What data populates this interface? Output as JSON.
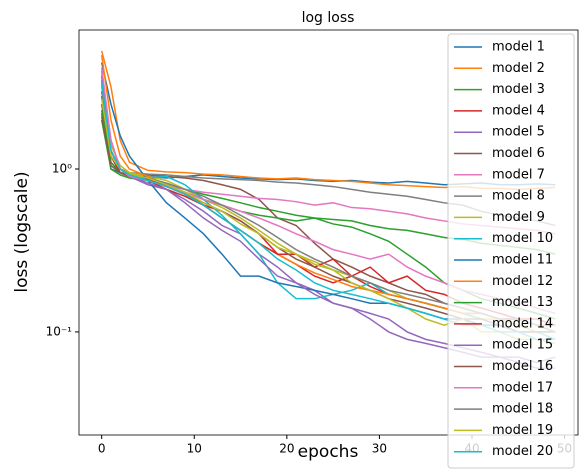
{
  "chart_data": {
    "type": "line",
    "title": "log loss",
    "x_label": "epochs",
    "y_label": "loss (logscale)",
    "log_y": true,
    "legend": "upper right",
    "x": [
      0,
      1,
      2,
      3,
      5,
      7,
      9,
      11,
      13,
      15,
      17,
      19,
      21,
      23,
      25,
      27,
      29,
      31,
      33,
      35,
      37,
      39,
      41,
      43,
      45,
      47,
      49
    ],
    "xlim": [
      -2.45,
      51.45
    ],
    "xticks": [
      0,
      10,
      20,
      30,
      40,
      50
    ],
    "ylim": [
      0.0233,
      7.13
    ],
    "yticks": [
      {
        "value": 0.1,
        "label": "10⁻¹"
      },
      {
        "value": 1,
        "label": "10⁰"
      }
    ],
    "series": [
      {
        "name": "model 1",
        "color": "#1f77b4",
        "values": [
          2.2,
          1.0,
          0.95,
          0.92,
          0.9,
          0.88,
          0.9,
          0.92,
          0.9,
          0.88,
          0.87,
          0.86,
          0.87,
          0.85,
          0.84,
          0.85,
          0.83,
          0.82,
          0.84,
          0.82,
          0.8,
          0.81,
          0.82,
          0.8,
          0.8,
          0.81,
          0.8
        ]
      },
      {
        "name": "model 2",
        "color": "#ff7f0e",
        "values": [
          5.3,
          3.2,
          1.5,
          1.1,
          0.98,
          0.96,
          0.95,
          0.93,
          0.92,
          0.9,
          0.88,
          0.87,
          0.88,
          0.86,
          0.85,
          0.84,
          0.82,
          0.8,
          0.79,
          0.78,
          0.77,
          0.78,
          0.76,
          0.76,
          0.75,
          0.76,
          0.77
        ]
      },
      {
        "name": "model 3",
        "color": "#2ca02c",
        "values": [
          2.0,
          1.0,
          0.92,
          0.88,
          0.85,
          0.8,
          0.75,
          0.7,
          0.66,
          0.62,
          0.58,
          0.55,
          0.52,
          0.5,
          0.49,
          0.48,
          0.45,
          0.43,
          0.42,
          0.4,
          0.38,
          0.37,
          0.35,
          0.34,
          0.33,
          0.32,
          0.3
        ]
      },
      {
        "name": "model 4",
        "color": "#d62728",
        "values": [
          3.0,
          1.2,
          0.95,
          0.9,
          0.85,
          0.78,
          0.7,
          0.6,
          0.55,
          0.48,
          0.4,
          0.3,
          0.26,
          0.22,
          0.2,
          0.22,
          0.19,
          0.17,
          0.16,
          0.15,
          0.14,
          0.13,
          0.13,
          0.12,
          0.12,
          0.11,
          0.11
        ]
      },
      {
        "name": "model 5",
        "color": "#9467bd",
        "values": [
          4.0,
          1.5,
          1.0,
          0.9,
          0.8,
          0.75,
          0.65,
          0.55,
          0.45,
          0.4,
          0.3,
          0.25,
          0.2,
          0.18,
          0.15,
          0.14,
          0.13,
          0.12,
          0.1,
          0.09,
          0.085,
          0.08,
          0.075,
          0.07,
          0.07,
          0.065,
          0.07
        ]
      },
      {
        "name": "model 6",
        "color": "#8c564b",
        "values": [
          2.5,
          1.1,
          0.95,
          0.93,
          0.92,
          0.9,
          0.88,
          0.85,
          0.8,
          0.75,
          0.65,
          0.5,
          0.45,
          0.35,
          0.28,
          0.25,
          0.22,
          0.2,
          0.18,
          0.17,
          0.15,
          0.14,
          0.13,
          0.12,
          0.12,
          0.11,
          0.1
        ]
      },
      {
        "name": "model 7",
        "color": "#e377c2",
        "values": [
          3.8,
          1.3,
          0.95,
          0.9,
          0.85,
          0.8,
          0.75,
          0.72,
          0.7,
          0.68,
          0.66,
          0.65,
          0.63,
          0.6,
          0.62,
          0.58,
          0.57,
          0.55,
          0.53,
          0.5,
          0.48,
          0.46,
          0.45,
          0.44,
          0.43,
          0.42,
          0.4
        ]
      },
      {
        "name": "model 8",
        "color": "#7f7f7f",
        "values": [
          3.5,
          1.5,
          1.0,
          0.95,
          0.93,
          0.92,
          0.9,
          0.88,
          0.87,
          0.86,
          0.85,
          0.83,
          0.82,
          0.8,
          0.78,
          0.75,
          0.72,
          0.7,
          0.68,
          0.65,
          0.62,
          0.6,
          0.55,
          0.52,
          0.5,
          0.48,
          0.45
        ]
      },
      {
        "name": "model 9",
        "color": "#bcbd22",
        "values": [
          3.2,
          1.4,
          1.05,
          0.95,
          0.9,
          0.85,
          0.75,
          0.65,
          0.58,
          0.5,
          0.42,
          0.35,
          0.3,
          0.27,
          0.24,
          0.22,
          0.2,
          0.18,
          0.16,
          0.15,
          0.14,
          0.13,
          0.12,
          0.12,
          0.11,
          0.1,
          0.1
        ]
      },
      {
        "name": "model 10",
        "color": "#17becf",
        "values": [
          3.3,
          1.2,
          0.95,
          0.9,
          0.88,
          0.9,
          0.8,
          0.65,
          0.52,
          0.4,
          0.3,
          0.2,
          0.16,
          0.16,
          0.17,
          0.18,
          0.2,
          0.17,
          0.16,
          0.15,
          0.14,
          0.13,
          0.12,
          0.11,
          0.1,
          0.1,
          0.09
        ]
      },
      {
        "name": "model 11",
        "color": "#1f77b4",
        "values": [
          4.5,
          2.5,
          1.6,
          1.2,
          0.85,
          0.62,
          0.5,
          0.4,
          0.3,
          0.22,
          0.22,
          0.2,
          0.19,
          0.18,
          0.17,
          0.16,
          0.15,
          0.15,
          0.14,
          0.13,
          0.12,
          0.12,
          0.11,
          0.11,
          0.1,
          0.1,
          0.1
        ]
      },
      {
        "name": "model 12",
        "color": "#ff7f0e",
        "values": [
          5.0,
          2.0,
          1.2,
          1.0,
          0.9,
          0.8,
          0.7,
          0.6,
          0.5,
          0.42,
          0.35,
          0.3,
          0.26,
          0.23,
          0.21,
          0.19,
          0.18,
          0.17,
          0.16,
          0.15,
          0.14,
          0.13,
          0.13,
          0.12,
          0.12,
          0.11,
          0.11
        ]
      },
      {
        "name": "model 13",
        "color": "#2ca02c",
        "values": [
          2.3,
          1.1,
          0.95,
          0.9,
          0.85,
          0.8,
          0.72,
          0.65,
          0.6,
          0.55,
          0.52,
          0.5,
          0.48,
          0.5,
          0.46,
          0.44,
          0.4,
          0.36,
          0.3,
          0.25,
          0.2,
          0.18,
          0.16,
          0.15,
          0.14,
          0.13,
          0.12
        ]
      },
      {
        "name": "model 14",
        "color": "#d62728",
        "values": [
          2.8,
          1.2,
          0.95,
          0.9,
          0.85,
          0.75,
          0.68,
          0.6,
          0.5,
          0.42,
          0.35,
          0.3,
          0.3,
          0.25,
          0.28,
          0.22,
          0.25,
          0.2,
          0.22,
          0.18,
          0.17,
          0.15,
          0.14,
          0.13,
          0.12,
          0.12,
          0.11
        ]
      },
      {
        "name": "model 15",
        "color": "#9467bd",
        "values": [
          3.7,
          1.3,
          1.0,
          0.9,
          0.82,
          0.75,
          0.62,
          0.5,
          0.42,
          0.36,
          0.28,
          0.22,
          0.2,
          0.17,
          0.15,
          0.14,
          0.12,
          0.1,
          0.09,
          0.085,
          0.08,
          0.075,
          0.07,
          0.07,
          0.065,
          0.06,
          0.06
        ]
      },
      {
        "name": "model 16",
        "color": "#8c564b",
        "values": [
          2.1,
          1.05,
          0.95,
          0.9,
          0.86,
          0.8,
          0.7,
          0.62,
          0.55,
          0.48,
          0.4,
          0.33,
          0.28,
          0.25,
          0.22,
          0.2,
          0.18,
          0.16,
          0.15,
          0.14,
          0.13,
          0.12,
          0.12,
          0.11,
          0.1,
          0.1,
          0.1
        ]
      },
      {
        "name": "model 17",
        "color": "#e377c2",
        "values": [
          4.2,
          1.5,
          1.0,
          0.9,
          0.85,
          0.78,
          0.72,
          0.65,
          0.6,
          0.55,
          0.5,
          0.45,
          0.4,
          0.36,
          0.32,
          0.3,
          0.28,
          0.3,
          0.25,
          0.22,
          0.2,
          0.18,
          0.17,
          0.16,
          0.15,
          0.14,
          0.13
        ]
      },
      {
        "name": "model 18",
        "color": "#7f7f7f",
        "values": [
          3.0,
          1.3,
          1.0,
          0.92,
          0.88,
          0.82,
          0.75,
          0.68,
          0.6,
          0.52,
          0.45,
          0.38,
          0.32,
          0.28,
          0.25,
          0.22,
          0.2,
          0.18,
          0.17,
          0.16,
          0.15,
          0.14,
          0.13,
          0.12,
          0.12,
          0.11,
          0.1
        ]
      },
      {
        "name": "model 19",
        "color": "#bcbd22",
        "values": [
          2.7,
          1.2,
          1.0,
          0.93,
          0.88,
          0.8,
          0.72,
          0.62,
          0.55,
          0.46,
          0.4,
          0.33,
          0.3,
          0.26,
          0.24,
          0.2,
          0.18,
          0.16,
          0.14,
          0.12,
          0.11,
          0.12,
          0.1,
          0.1,
          0.09,
          0.09,
          0.085
        ]
      },
      {
        "name": "model 20",
        "color": "#17becf",
        "values": [
          3.4,
          1.3,
          1.0,
          0.92,
          0.85,
          0.78,
          0.7,
          0.6,
          0.5,
          0.42,
          0.35,
          0.28,
          0.24,
          0.2,
          0.18,
          0.17,
          0.16,
          0.15,
          0.14,
          0.13,
          0.12,
          0.11,
          0.11,
          0.1,
          0.1,
          0.09,
          0.09
        ]
      }
    ]
  }
}
